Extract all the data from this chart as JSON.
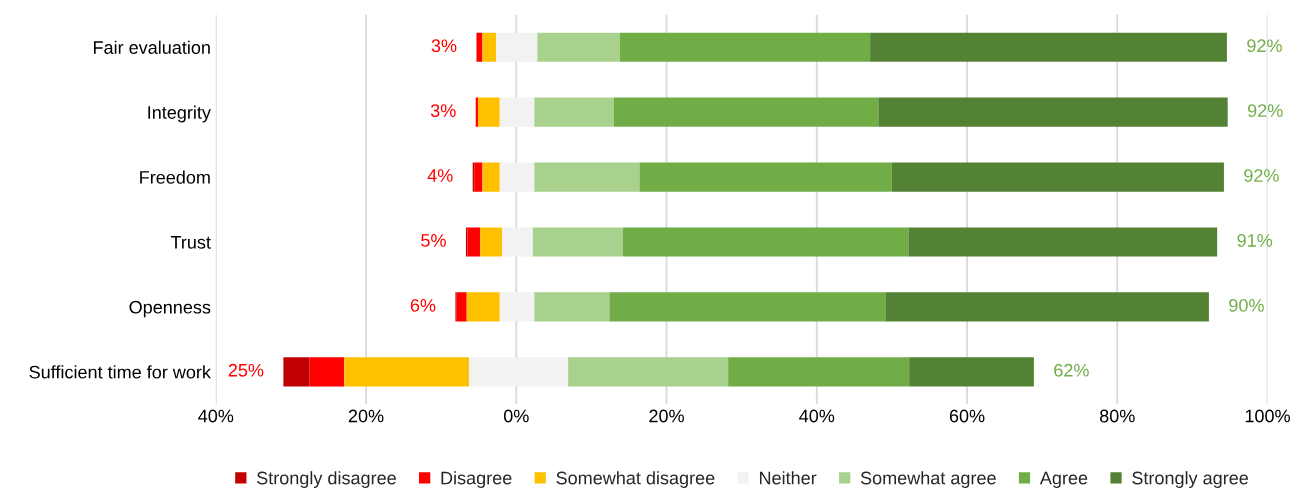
{
  "chart_data": {
    "type": "bar",
    "orientation": "horizontal",
    "categories": [
      "Fair evaluation",
      "Integrity",
      "Freedom",
      "Trust",
      "Openness",
      "Sufficient time for work"
    ],
    "series": [
      {
        "name": "Strongly disagree",
        "color": "#c00000",
        "base": [
          null,
          null,
          -5.8,
          -6.7,
          -8.1,
          -31
        ],
        "values": [
          null,
          null,
          0.2,
          0.2,
          0.1,
          3.5
        ]
      },
      {
        "name": "Disagree",
        "color": "#ff0000",
        "base": [
          -5.3,
          -5.4,
          -5.6,
          -6.5,
          -8.0,
          -27.5
        ],
        "values": [
          0.8,
          0.3,
          1.1,
          1.7,
          1.4,
          4.6
        ]
      },
      {
        "name": "Somewhat disagree",
        "color": "#ffc000",
        "base": [
          -4.5,
          -5.1,
          -4.5,
          -4.8,
          -6.6,
          -22.9
        ],
        "values": [
          1.8,
          2.9,
          2.3,
          2.9,
          4.4,
          16.6
        ]
      },
      {
        "name": "Neither",
        "color": "#f2f2f2",
        "base": [
          -2.7,
          -2.2,
          -2.2,
          -1.9,
          -2.2,
          -6.3
        ],
        "values": [
          5.5,
          4.6,
          4.6,
          4.1,
          4.6,
          13.2
        ]
      },
      {
        "name": "Somewhat agree",
        "color": "#a9d18e",
        "base": [
          2.8,
          2.4,
          2.4,
          2.2,
          2.4,
          6.9
        ],
        "values": [
          11,
          10.6,
          14,
          12,
          10,
          21.3
        ]
      },
      {
        "name": "Agree",
        "color": "#70ad47",
        "base": [
          13.8,
          13.0,
          16.4,
          14.2,
          12.4,
          28.2
        ],
        "values": [
          33.3,
          35.2,
          33.6,
          38,
          36.8,
          24.1
        ]
      },
      {
        "name": "Strongly agree",
        "color": "#548235",
        "base": [
          47.1,
          48.2,
          50.0,
          52.2,
          49.2,
          52.3
        ],
        "values": [
          47.5,
          46.5,
          44.2,
          41.1,
          43,
          16.6
        ]
      }
    ],
    "xlim": [
      -40,
      100
    ],
    "xticks": [
      {
        "value": -40,
        "label": "40%"
      },
      {
        "value": -20,
        "label": "20%"
      },
      {
        "value": 0,
        "label": "0%"
      },
      {
        "value": 20,
        "label": "20%"
      },
      {
        "value": 40,
        "label": "40%"
      },
      {
        "value": 60,
        "label": "60%"
      },
      {
        "value": 80,
        "label": "80%"
      },
      {
        "value": 100,
        "label": "100%"
      }
    ],
    "grid": "x",
    "legend": "bottom",
    "annotations": [
      "3%",
      "92%",
      "3%",
      "92%",
      "4%",
      "92%",
      "5%",
      "91%",
      "6%",
      "90%",
      "25%",
      "62%"
    ]
  }
}
